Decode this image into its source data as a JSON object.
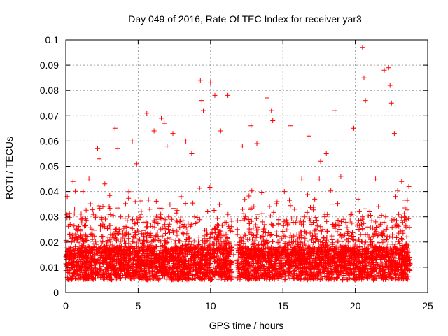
{
  "chart_data": {
    "type": "scatter",
    "title": "Day 049 of 2016, Rate Of TEC Index for receiver yar3",
    "xlabel": "GPS time / hours",
    "ylabel": "ROTI / TECUs",
    "xlim": [
      0,
      25
    ],
    "ylim": [
      0,
      0.1
    ],
    "x_ticks": [
      "0",
      "5",
      "10",
      "15",
      "20",
      "25"
    ],
    "x_tick_values": [
      0,
      5,
      10,
      15,
      20,
      25
    ],
    "y_ticks": [
      "0",
      "0.01",
      "0.02",
      "0.03",
      "0.04",
      "0.05",
      "0.06",
      "0.07",
      "0.08",
      "0.09",
      "0.1"
    ],
    "y_tick_values": [
      0,
      0.01,
      0.02,
      0.03,
      0.04,
      0.05,
      0.06,
      0.07,
      0.08,
      0.09,
      0.1
    ],
    "grid": true,
    "marker": "+",
    "color": "#ff0000",
    "series": [
      {
        "name": "ROTI",
        "x": [
          0.1,
          0.5,
          1.2,
          1.6,
          2.2,
          2.3,
          2.7,
          3.4,
          3.6,
          4.6,
          4.9,
          5.6,
          6.1,
          6.6,
          6.8,
          7.0,
          7.4,
          8.3,
          8.7,
          9.3,
          9.4,
          9.5,
          10.0,
          10.3,
          10.7,
          11.2,
          12.2,
          12.8,
          13.2,
          13.9,
          14.2,
          14.3,
          15.5,
          16.3,
          16.8,
          17.6,
          18.0,
          18.6,
          19.0,
          19.9,
          20.5,
          20.6,
          20.7,
          21.4,
          22.0,
          22.3,
          22.4,
          22.5,
          22.7,
          23.2,
          23.7,
          0.3,
          0.8,
          1.0,
          1.9,
          2.5,
          3.0,
          3.8,
          4.2,
          4.8,
          5.2,
          5.8,
          6.3,
          7.2,
          7.7,
          8.1,
          8.9,
          9.8,
          10.5,
          11.0,
          11.6,
          12.4,
          13.0,
          13.6,
          14.6,
          15.1,
          15.8,
          16.5,
          17.2,
          17.9,
          18.4,
          19.2,
          19.7,
          20.2,
          21.0,
          21.6,
          22.1,
          22.8,
          23.0,
          23.5,
          0.2,
          0.6,
          1.4,
          2.0,
          2.8,
          3.2,
          4.0,
          4.4,
          5.0,
          5.4,
          6.0,
          6.5,
          7.1,
          7.9,
          8.5,
          9.1,
          9.7,
          10.2,
          10.9,
          11.4,
          12.1,
          12.6,
          13.4,
          14.0,
          14.8,
          15.3,
          16.0,
          16.7,
          17.4,
          18.2,
          18.8,
          19.4,
          20.0,
          20.8,
          21.2,
          21.8,
          22.6,
          23.3,
          23.8
        ],
        "y": [
          0.038,
          0.044,
          0.04,
          0.045,
          0.057,
          0.053,
          0.043,
          0.065,
          0.057,
          0.06,
          0.051,
          0.071,
          0.064,
          0.069,
          0.067,
          0.058,
          0.063,
          0.06,
          0.055,
          0.084,
          0.076,
          0.072,
          0.083,
          0.078,
          0.064,
          0.078,
          0.058,
          0.066,
          0.059,
          0.077,
          0.072,
          0.068,
          0.066,
          0.045,
          0.062,
          0.052,
          0.055,
          0.072,
          0.046,
          0.065,
          0.097,
          0.085,
          0.076,
          0.045,
          0.088,
          0.089,
          0.082,
          0.075,
          0.063,
          0.044,
          0.042,
          0.027,
          0.021,
          0.025,
          0.031,
          0.029,
          0.034,
          0.03,
          0.026,
          0.036,
          0.031,
          0.033,
          0.029,
          0.035,
          0.028,
          0.027,
          0.03,
          0.032,
          0.025,
          0.024,
          0.015,
          0.03,
          0.034,
          0.028,
          0.036,
          0.04,
          0.033,
          0.03,
          0.037,
          0.031,
          0.035,
          0.029,
          0.031,
          0.037,
          0.032,
          0.034,
          0.03,
          0.038,
          0.031,
          0.026,
          0.012,
          0.01,
          0.014,
          0.013,
          0.011,
          0.016,
          0.012,
          0.015,
          0.013,
          0.017,
          0.012,
          0.014,
          0.016,
          0.013,
          0.011,
          0.012,
          0.015,
          0.01,
          0.013,
          0.009,
          0.014,
          0.016,
          0.013,
          0.015,
          0.018,
          0.014,
          0.016,
          0.013,
          0.015,
          0.017,
          0.014,
          0.013,
          0.015,
          0.012,
          0.016,
          0.014,
          0.017,
          0.013,
          0.012
        ]
      }
    ]
  }
}
